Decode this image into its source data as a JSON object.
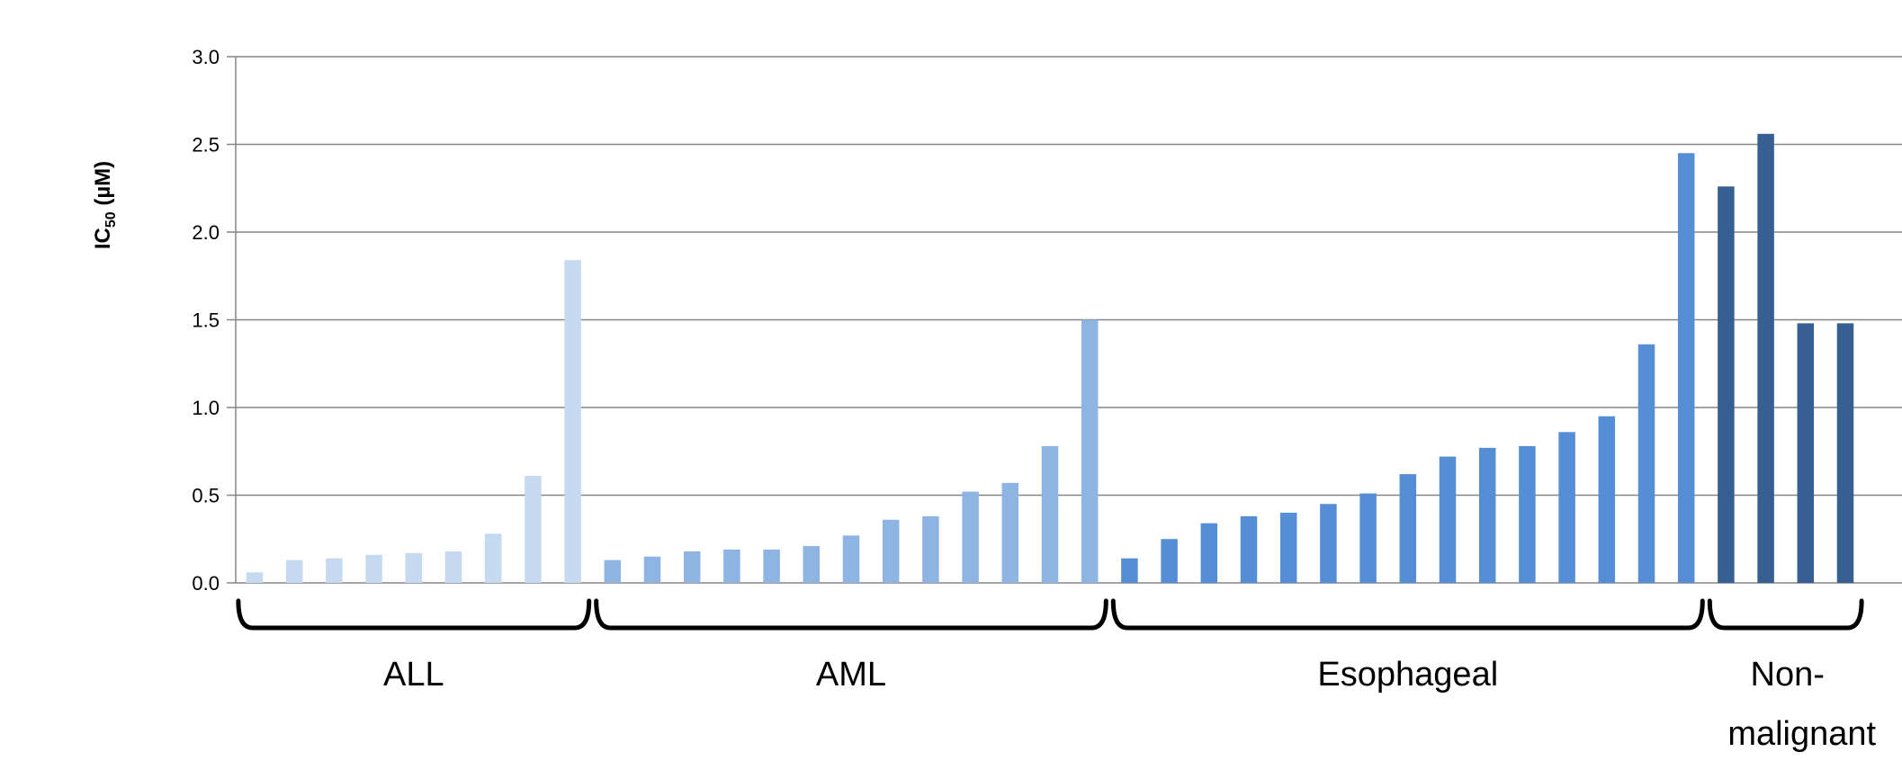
{
  "chart_data": {
    "type": "bar",
    "ylabel": {
      "main": "IC",
      "subscript": "50",
      "unit": " (µM)"
    },
    "ylim": [
      0,
      3.0
    ],
    "y_ticks": [
      "0.0",
      "0.5",
      "1.0",
      "1.5",
      "2.0",
      "2.5",
      "3.0"
    ],
    "grid": true,
    "legend": "none",
    "groups": [
      {
        "label": "ALL",
        "color": "#c5d9f1",
        "values": [
          0.06,
          0.13,
          0.14,
          0.16,
          0.17,
          0.18,
          0.28,
          0.61,
          1.84
        ]
      },
      {
        "label": "AML",
        "color": "#8db4e2",
        "values": [
          0.13,
          0.15,
          0.18,
          0.19,
          0.19,
          0.21,
          0.27,
          0.36,
          0.38,
          0.52,
          0.57,
          0.78,
          1.5
        ]
      },
      {
        "label": "Esophageal",
        "color": "#558ed5",
        "values": [
          0.14,
          0.25,
          0.34,
          0.38,
          0.4,
          0.45,
          0.51,
          0.62,
          0.72,
          0.77,
          0.78,
          0.86,
          0.95,
          1.36,
          2.45
        ]
      },
      {
        "label_lines": [
          "Non-",
          "malignant"
        ],
        "color": "#376092",
        "values": [
          2.26,
          2.56,
          1.48,
          1.48
        ]
      }
    ]
  }
}
